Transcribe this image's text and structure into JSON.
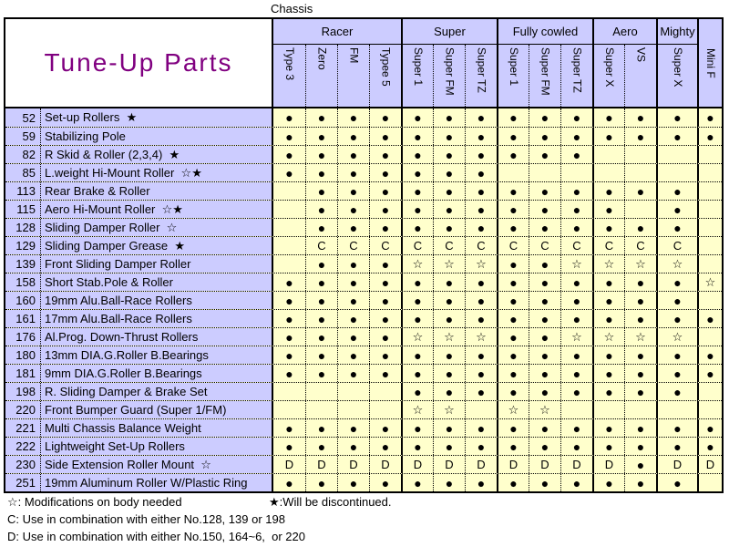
{
  "chassis_label": "Chassis",
  "title": "Tune-Up Parts",
  "colors": {
    "header_bg": "#ccccff",
    "cell_bg": "#ffffcc",
    "title_color": "#800080",
    "border": "#000000"
  },
  "symbols": {
    "compatible_dot": "●",
    "body_mod_star": "☆",
    "discontinued_star": "★",
    "combo_c": "C",
    "combo_d": "D"
  },
  "table": {
    "groups": [
      {
        "label": "Racer",
        "span": 4
      },
      {
        "label": "Super",
        "span": 3
      },
      {
        "label": "Fully cowled",
        "span": 3
      },
      {
        "label": "Aero",
        "span": 2
      },
      {
        "label": "Mighty",
        "span": 1
      }
    ],
    "columns": [
      "Type 3",
      "Zero",
      "FM",
      "Typee 5",
      "Super 1",
      "Super FM",
      "Super TZ",
      "Super 1",
      "Super FM",
      "Super TZ",
      "Super X",
      "VS",
      "Super X",
      "Mini F"
    ],
    "rows": [
      {
        "no": "52",
        "name": "Set-up Rollers  ★",
        "cells": [
          "●",
          "●",
          "●",
          "●",
          "●",
          "●",
          "●",
          "●",
          "●",
          "●",
          "●",
          "●",
          "●",
          "●"
        ]
      },
      {
        "no": "59",
        "name": "Stabilizing Pole",
        "cells": [
          "●",
          "●",
          "●",
          "●",
          "●",
          "●",
          "●",
          "●",
          "●",
          "●",
          "●",
          "●",
          "●",
          "●"
        ]
      },
      {
        "no": "82",
        "name": "R Skid & Roller (2,3,4)  ★",
        "cells": [
          "●",
          "●",
          "●",
          "●",
          "●",
          "●",
          "●",
          "●",
          "●",
          "●",
          "",
          "",
          "",
          ""
        ]
      },
      {
        "no": "85",
        "name": "L.weight Hi-Mount Roller  ☆★",
        "cells": [
          "●",
          "●",
          "●",
          "●",
          "●",
          "●",
          "●",
          "",
          "",
          "",
          "",
          "",
          "",
          ""
        ]
      },
      {
        "no": "113",
        "name": "Rear Brake & Roller",
        "cells": [
          "",
          "●",
          "●",
          "●",
          "●",
          "●",
          "●",
          "●",
          "●",
          "●",
          "●",
          "●",
          "●",
          ""
        ]
      },
      {
        "no": "115",
        "name": "Aero Hi-Mount Roller  ☆★",
        "cells": [
          "",
          "●",
          "●",
          "●",
          "●",
          "●",
          "●",
          "●",
          "●",
          "●",
          "●",
          "",
          "●",
          ""
        ]
      },
      {
        "no": "128",
        "name": "Sliding Damper Roller  ☆",
        "cells": [
          "",
          "●",
          "●",
          "●",
          "●",
          "●",
          "●",
          "●",
          "●",
          "●",
          "●",
          "●",
          "●",
          ""
        ]
      },
      {
        "no": "129",
        "name": "Sliding Damper Grease  ★",
        "cells": [
          "",
          "C",
          "C",
          "C",
          "C",
          "C",
          "C",
          "C",
          "C",
          "C",
          "C",
          "C",
          "C",
          ""
        ]
      },
      {
        "no": "139",
        "name": "Front Sliding Damper Roller",
        "cells": [
          "",
          "●",
          "●",
          "●",
          "☆",
          "☆",
          "☆",
          "●",
          "●",
          "☆",
          "☆",
          "☆",
          "☆",
          ""
        ]
      },
      {
        "no": "158",
        "name": "Short Stab.Pole & Roller",
        "cells": [
          "●",
          "●",
          "●",
          "●",
          "●",
          "●",
          "●",
          "●",
          "●",
          "●",
          "●",
          "●",
          "●",
          "☆"
        ]
      },
      {
        "no": "160",
        "name": "19mm Alu.Ball-Race Rollers",
        "cells": [
          "●",
          "●",
          "●",
          "●",
          "●",
          "●",
          "●",
          "●",
          "●",
          "●",
          "●",
          "●",
          "●",
          ""
        ]
      },
      {
        "no": "161",
        "name": "17mm Alu.Ball-Race Rollers",
        "cells": [
          "●",
          "●",
          "●",
          "●",
          "●",
          "●",
          "●",
          "●",
          "●",
          "●",
          "●",
          "●",
          "●",
          "●"
        ]
      },
      {
        "no": "176",
        "name": "Al.Prog. Down-Thrust Rollers",
        "cells": [
          "●",
          "●",
          "●",
          "●",
          "☆",
          "☆",
          "☆",
          "●",
          "●",
          "☆",
          "☆",
          "☆",
          "☆",
          ""
        ]
      },
      {
        "no": "180",
        "name": "13mm DIA.G.Roller B.Bearings",
        "cells": [
          "●",
          "●",
          "●",
          "●",
          "●",
          "●",
          "●",
          "●",
          "●",
          "●",
          "●",
          "●",
          "●",
          "●"
        ]
      },
      {
        "no": "181",
        "name": "9mm DIA.G.Roller B.Bearings",
        "cells": [
          "●",
          "●",
          "●",
          "●",
          "●",
          "●",
          "●",
          "●",
          "●",
          "●",
          "●",
          "●",
          "●",
          "●"
        ]
      },
      {
        "no": "198",
        "name": "R. Sliding Damper & Brake Set",
        "cells": [
          "",
          "",
          "",
          "",
          "●",
          "●",
          "●",
          "●",
          "●",
          "●",
          "●",
          "●",
          "●",
          ""
        ]
      },
      {
        "no": "220",
        "name": "Front Bumper Guard (Super 1/FM)",
        "cells": [
          "",
          "",
          "",
          "",
          "☆",
          "☆",
          "",
          "☆",
          "☆",
          "",
          "",
          "",
          "",
          ""
        ]
      },
      {
        "no": "221",
        "name": "Multi Chassis Balance Weight",
        "cells": [
          "●",
          "●",
          "●",
          "●",
          "●",
          "●",
          "●",
          "●",
          "●",
          "●",
          "●",
          "●",
          "●",
          "●"
        ]
      },
      {
        "no": "222",
        "name": "Lightweight Set-Up Rollers",
        "cells": [
          "●",
          "●",
          "●",
          "●",
          "●",
          "●",
          "●",
          "●",
          "●",
          "●",
          "●",
          "●",
          "●",
          "●"
        ]
      },
      {
        "no": "230",
        "name": "Side Extension Roller Mount  ☆",
        "cells": [
          "D",
          "D",
          "D",
          "D",
          "D",
          "D",
          "D",
          "D",
          "D",
          "D",
          "D",
          "●",
          "D",
          "D"
        ]
      },
      {
        "no": "251",
        "name": "19mm Aluminum Roller W/Plastic Ring",
        "cells": [
          "●",
          "●",
          "●",
          "●",
          "●",
          "●",
          "●",
          "●",
          "●",
          "●",
          "●",
          "●",
          "●",
          ""
        ]
      }
    ]
  },
  "legend": {
    "mod_line": "☆: Modifications on body needed",
    "disc_line": "★:Will be discontinued.",
    "c_line": "C: Use in combination with either No.128, 139 or 198",
    "d_line": "D: Use in combination with either No.150, 164~6,  or 220"
  }
}
